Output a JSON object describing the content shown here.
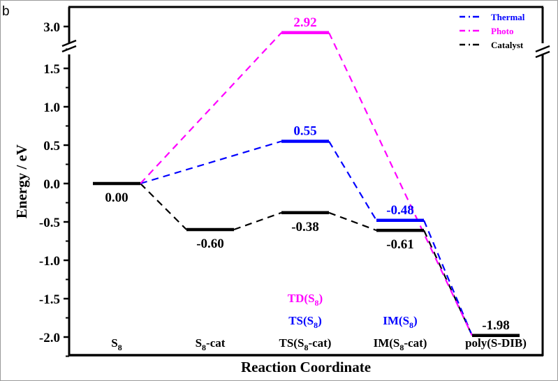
{
  "panel_label": "b",
  "chart_data": {
    "type": "line",
    "title": "",
    "xlabel": "Reaction Coordinate",
    "ylabel": "Energy / eV",
    "ylim": [
      -2.3,
      3.4
    ],
    "y_axis_break": {
      "from": 1.75,
      "to": 2.85
    },
    "y_ticks": [
      {
        "value": 3.0,
        "label": "3.0"
      },
      {
        "value": 1.5,
        "label": "1.5"
      },
      {
        "value": 1.0,
        "label": "1.0"
      },
      {
        "value": 0.5,
        "label": "0.5"
      },
      {
        "value": 0.0,
        "label": "0.0"
      },
      {
        "value": -0.5,
        "label": "-0.5"
      },
      {
        "value": -1.0,
        "label": "-1.0"
      },
      {
        "value": -1.5,
        "label": "-1.5"
      },
      {
        "value": -2.0,
        "label": "-2.0"
      }
    ],
    "categories": [
      {
        "label": "S",
        "sub": "8",
        "suffix": ""
      },
      {
        "label": "S",
        "sub": "8",
        "suffix": "-cat"
      },
      {
        "label": "TS(S",
        "sub": "8",
        "suffix": "-cat)"
      },
      {
        "label": "IM(S",
        "sub": "8",
        "suffix": "-cat)"
      },
      {
        "label": "poly(S-DIB)",
        "sub": "",
        "suffix": ""
      }
    ],
    "extra_category_labels": [
      {
        "index": 2,
        "row": 2,
        "label": "TD(S",
        "sub": "8",
        "suffix": ")",
        "series": "Photo"
      },
      {
        "index": 2,
        "row": 1,
        "label": "TS(S",
        "sub": "8",
        "suffix": ")",
        "series": "Thermal"
      },
      {
        "index": 3,
        "row": 1,
        "label": "IM(S",
        "sub": "8",
        "suffix": ")",
        "series": "Thermal"
      }
    ],
    "series": [
      {
        "name": "Thermal",
        "color": "#0000ff",
        "points": [
          {
            "index": 0,
            "value": 0.0,
            "label": null
          },
          {
            "index": 2,
            "value": 0.55,
            "label": "0.55",
            "label_pos": "above"
          },
          {
            "index": 3,
            "value": -0.48,
            "label": "-0.48",
            "label_pos": "above"
          },
          {
            "index": 4,
            "value": -1.98,
            "label": null
          }
        ]
      },
      {
        "name": "Photo",
        "color": "#ff00ff",
        "points": [
          {
            "index": 0,
            "value": 0.0,
            "label": null
          },
          {
            "index": 2,
            "value": 2.92,
            "label": "2.92",
            "label_pos": "above"
          },
          {
            "index": 4,
            "value": -1.98,
            "label": null
          }
        ]
      },
      {
        "name": "Catalyst",
        "color": "#000000",
        "points": [
          {
            "index": 0,
            "value": 0.0,
            "label": "0.00",
            "label_pos": "below"
          },
          {
            "index": 1,
            "value": -0.6,
            "label": "-0.60",
            "label_pos": "below"
          },
          {
            "index": 2,
            "value": -0.38,
            "label": "-0.38",
            "label_pos": "below"
          },
          {
            "index": 3,
            "value": -0.61,
            "label": "-0.61",
            "label_pos": "below"
          },
          {
            "index": 4,
            "value": -1.98,
            "label": "-1.98",
            "label_pos": "above"
          }
        ]
      }
    ],
    "legend": {
      "position": "top-right",
      "entries": [
        {
          "name": "Thermal",
          "color": "#0000ff"
        },
        {
          "name": "Photo",
          "color": "#ff00ff"
        },
        {
          "name": "Catalyst",
          "color": "#000000"
        }
      ]
    },
    "grid": false
  }
}
